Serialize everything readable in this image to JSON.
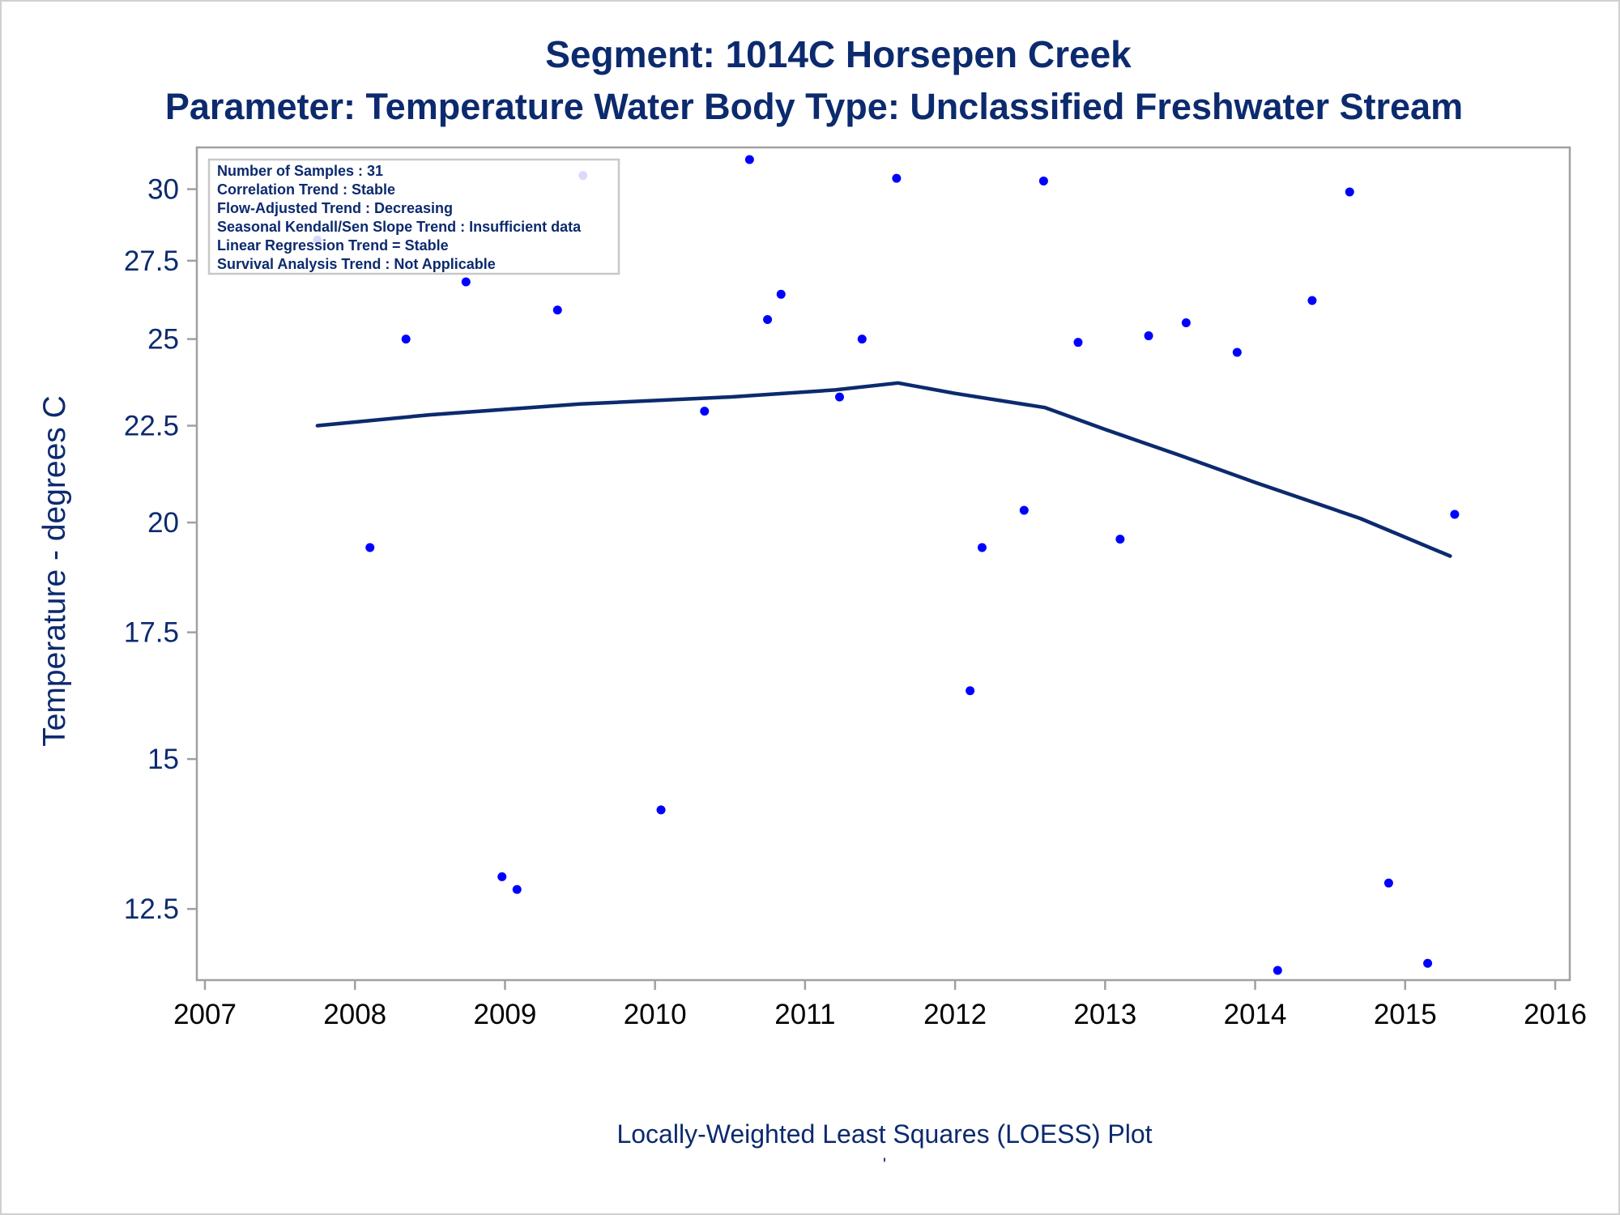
{
  "chart_data": {
    "type": "scatter",
    "title": "Segment: 1014C  Horsepen Creek",
    "subtitle": "Parameter: Temperature   Water Body Type: Unclassified Freshwater Stream",
    "ylabel": "Temperature - degrees C",
    "xlabel": "Locally-Weighted Least Squares (LOESS) Plot",
    "footnote": "'",
    "x_ticks": [
      "2007",
      "2008",
      "2009",
      "2010",
      "2011",
      "2012",
      "2013",
      "2014",
      "2015",
      "2016"
    ],
    "y_ticks": [
      "12.5",
      "15",
      "17.5",
      "20",
      "22.5",
      "25",
      "27.5",
      "30"
    ],
    "y_tick_values": [
      12.5,
      15,
      17.5,
      20,
      22.5,
      25,
      27.5,
      30
    ],
    "xlim": [
      2007,
      2016
    ],
    "ylim": [
      11.6,
      31.1
    ],
    "y_scale": "log",
    "grid": false,
    "legend_position": "top-left",
    "stats_box": [
      "Number of Samples : 31",
      "Correlation Trend : Stable",
      "Flow-Adjusted Trend : Decreasing",
      "Seasonal Kendall/Sen Slope Trend : Insufficient data",
      "Linear Regression Trend = Stable",
      "Survival Analysis Trend : Not Applicable"
    ],
    "points": [
      {
        "x": 2007.75,
        "y": 28.2
      },
      {
        "x": 2008.1,
        "y": 19.4
      },
      {
        "x": 2008.34,
        "y": 25.0
      },
      {
        "x": 2008.74,
        "y": 26.8
      },
      {
        "x": 2008.98,
        "y": 13.0
      },
      {
        "x": 2009.08,
        "y": 12.8
      },
      {
        "x": 2009.35,
        "y": 25.9
      },
      {
        "x": 2009.52,
        "y": 30.5
      },
      {
        "x": 2010.04,
        "y": 14.1
      },
      {
        "x": 2010.33,
        "y": 22.9
      },
      {
        "x": 2010.63,
        "y": 31.1
      },
      {
        "x": 2010.75,
        "y": 25.6
      },
      {
        "x": 2010.84,
        "y": 26.4
      },
      {
        "x": 2011.23,
        "y": 23.3
      },
      {
        "x": 2011.38,
        "y": 25.0
      },
      {
        "x": 2011.61,
        "y": 30.4
      },
      {
        "x": 2012.1,
        "y": 16.3
      },
      {
        "x": 2012.18,
        "y": 19.4
      },
      {
        "x": 2012.46,
        "y": 20.3
      },
      {
        "x": 2012.59,
        "y": 30.3
      },
      {
        "x": 2012.82,
        "y": 24.9
      },
      {
        "x": 2013.1,
        "y": 19.6
      },
      {
        "x": 2013.29,
        "y": 25.1
      },
      {
        "x": 2013.54,
        "y": 25.5
      },
      {
        "x": 2013.88,
        "y": 24.6
      },
      {
        "x": 2014.15,
        "y": 11.6
      },
      {
        "x": 2014.38,
        "y": 26.2
      },
      {
        "x": 2014.63,
        "y": 29.9
      },
      {
        "x": 2014.89,
        "y": 12.9
      },
      {
        "x": 2015.15,
        "y": 11.7
      },
      {
        "x": 2015.33,
        "y": 20.2
      }
    ],
    "loess_line": [
      {
        "x": 2007.75,
        "y": 22.5
      },
      {
        "x": 2008.5,
        "y": 22.8
      },
      {
        "x": 2009.5,
        "y": 23.1
      },
      {
        "x": 2010.5,
        "y": 23.3
      },
      {
        "x": 2011.2,
        "y": 23.5
      },
      {
        "x": 2011.62,
        "y": 23.7
      },
      {
        "x": 2012.0,
        "y": 23.4
      },
      {
        "x": 2012.6,
        "y": 23.0
      },
      {
        "x": 2013.0,
        "y": 22.4
      },
      {
        "x": 2013.5,
        "y": 21.7
      },
      {
        "x": 2014.0,
        "y": 21.0
      },
      {
        "x": 2014.7,
        "y": 20.1
      },
      {
        "x": 2015.3,
        "y": 19.2
      }
    ],
    "colors": {
      "points": "#0000ff",
      "loess_line": "#0c2a6e",
      "text": "#0c2a6e",
      "frame": "#a0a0a0"
    }
  }
}
